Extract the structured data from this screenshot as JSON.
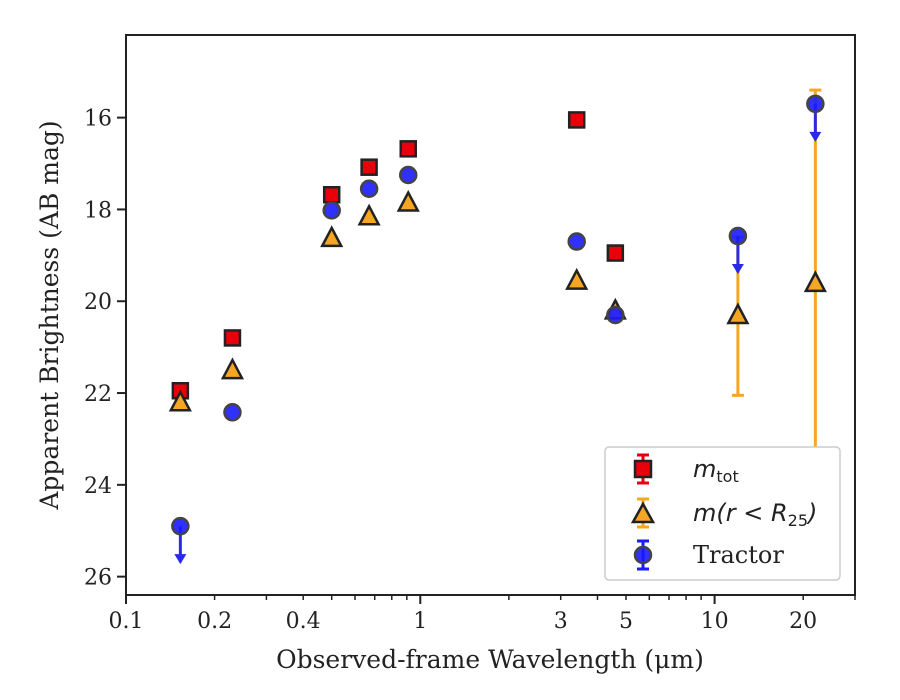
{
  "chart_data": {
    "type": "scatter",
    "xlabel": "Observed-frame Wavelength (μm)",
    "ylabel": "Apparent Brightness (AB mag)",
    "xscale": "log",
    "xlim": [
      0.1,
      30
    ],
    "ylim": [
      26.4,
      14.2
    ],
    "y_inverted": true,
    "x_ticks": [
      {
        "value": 0.1,
        "label": "0.1"
      },
      {
        "value": 0.2,
        "label": "0.2"
      },
      {
        "value": 0.4,
        "label": "0.4"
      },
      {
        "value": 1,
        "label": "1"
      },
      {
        "value": 3,
        "label": "3"
      },
      {
        "value": 5,
        "label": "5"
      },
      {
        "value": 10,
        "label": "10"
      },
      {
        "value": 20,
        "label": "20"
      }
    ],
    "y_ticks": [
      {
        "value": 16,
        "label": "16"
      },
      {
        "value": 18,
        "label": "18"
      },
      {
        "value": 20,
        "label": "20"
      },
      {
        "value": 22,
        "label": "22"
      },
      {
        "value": 24,
        "label": "24"
      },
      {
        "value": 26,
        "label": "26"
      }
    ],
    "grid": false,
    "legend_position": "lower-right",
    "series": [
      {
        "name": "m_tot",
        "marker": "square",
        "color": "#e8000b",
        "points": [
          {
            "x": 0.153,
            "y": 21.95
          },
          {
            "x": 0.23,
            "y": 20.8
          },
          {
            "x": 0.5,
            "y": 17.68
          },
          {
            "x": 0.67,
            "y": 17.08
          },
          {
            "x": 0.91,
            "y": 16.68
          },
          {
            "x": 3.4,
            "y": 16.05
          },
          {
            "x": 4.6,
            "y": 18.95
          }
        ]
      },
      {
        "name": "m(r<R25)",
        "marker": "triangle",
        "color": "#f5a623",
        "points": [
          {
            "x": 0.153,
            "y": 22.2
          },
          {
            "x": 0.23,
            "y": 21.5
          },
          {
            "x": 0.5,
            "y": 18.62
          },
          {
            "x": 0.67,
            "y": 18.15
          },
          {
            "x": 0.91,
            "y": 17.85
          },
          {
            "x": 3.4,
            "y": 19.55
          },
          {
            "x": 4.6,
            "y": 20.2
          },
          {
            "x": 12.0,
            "y": 20.3,
            "err_low": 18.6,
            "err_high": 22.05
          },
          {
            "x": 22.0,
            "y": 19.6,
            "err_low": 15.4,
            "err_high": 23.75
          }
        ]
      },
      {
        "name": "Tractor",
        "marker": "circle",
        "color": "#1a1aff",
        "points": [
          {
            "x": 0.153,
            "y": 24.9,
            "upper_limit": true
          },
          {
            "x": 0.23,
            "y": 22.42
          },
          {
            "x": 0.5,
            "y": 18.02
          },
          {
            "x": 0.67,
            "y": 17.55
          },
          {
            "x": 0.91,
            "y": 17.25
          },
          {
            "x": 3.4,
            "y": 18.7
          },
          {
            "x": 4.6,
            "y": 20.3
          },
          {
            "x": 12.0,
            "y": 18.58,
            "upper_limit": true
          },
          {
            "x": 22.0,
            "y": 15.7,
            "upper_limit": true
          }
        ]
      }
    ]
  },
  "legend": {
    "items": [
      {
        "main": "m",
        "sub": "tot"
      },
      {
        "text": "m(r < R",
        "sub": "25",
        "after": ")"
      },
      {
        "text": "Tractor"
      }
    ]
  }
}
